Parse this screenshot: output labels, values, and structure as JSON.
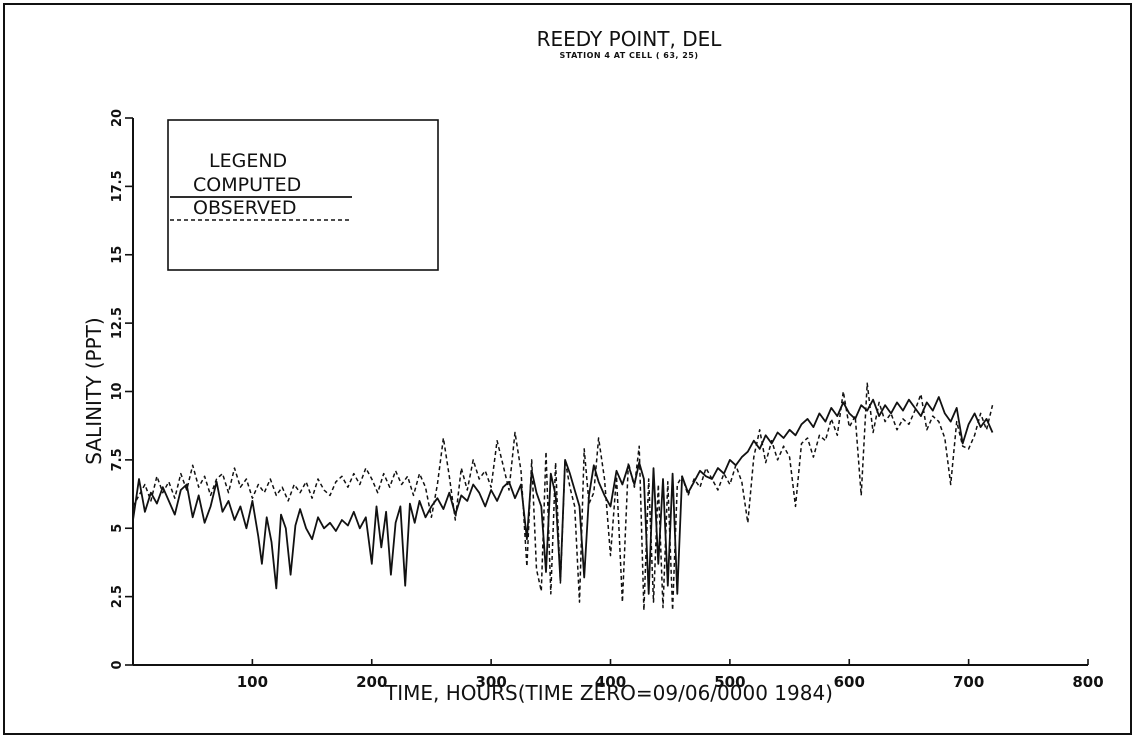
{
  "chart_data": {
    "type": "line",
    "title": "REEDY POINT, DEL",
    "subtitle": "STATION 4 AT CELL ( 63, 25)",
    "xlabel": "TIME, HOURS(TIME ZERO=09/06/0000 1984)",
    "ylabel": "SALINITY (PPT)",
    "xlim": [
      0,
      800
    ],
    "ylim": [
      0,
      20
    ],
    "x_ticks": [
      100,
      200,
      300,
      400,
      500,
      600,
      700,
      800
    ],
    "y_ticks": [
      0,
      2.5,
      5,
      7.5,
      10,
      12.5,
      15,
      17.5,
      20
    ],
    "x_tick_labels": [
      "100",
      "200",
      "300",
      "400",
      "500",
      "600",
      "700",
      "800"
    ],
    "y_tick_labels": [
      "0",
      "2.5",
      "5",
      "7.5",
      "10",
      "12.5",
      "15",
      "17.5",
      "20"
    ],
    "legend": {
      "title": "LEGEND",
      "placement": "top-left",
      "entries": [
        {
          "name": "COMPUTED",
          "style": "solid"
        },
        {
          "name": "OBSERVED",
          "style": "dashed"
        }
      ]
    },
    "grid": false,
    "series": [
      {
        "name": "COMPUTED",
        "style": "solid",
        "x": [
          0,
          5,
          10,
          15,
          20,
          25,
          30,
          35,
          40,
          45,
          50,
          55,
          60,
          65,
          70,
          75,
          80,
          85,
          90,
          95,
          100,
          105,
          108,
          112,
          116,
          120,
          124,
          128,
          132,
          136,
          140,
          145,
          150,
          155,
          160,
          165,
          170,
          175,
          180,
          185,
          190,
          195,
          200,
          204,
          208,
          212,
          216,
          220,
          224,
          228,
          232,
          236,
          240,
          245,
          250,
          255,
          260,
          265,
          270,
          275,
          280,
          285,
          290,
          295,
          300,
          305,
          310,
          315,
          320,
          325,
          330,
          334,
          338,
          342,
          346,
          350,
          354,
          358,
          362,
          366,
          370,
          374,
          378,
          382,
          386,
          390,
          395,
          400,
          405,
          410,
          415,
          420,
          424,
          428,
          432,
          436,
          440,
          444,
          448,
          452,
          456,
          460,
          465,
          470,
          475,
          480,
          485,
          490,
          495,
          500,
          505,
          510,
          515,
          520,
          525,
          530,
          535,
          540,
          545,
          550,
          555,
          560,
          565,
          570,
          575,
          580,
          585,
          590,
          595,
          600,
          605,
          610,
          615,
          620,
          625,
          630,
          635,
          640,
          645,
          650,
          655,
          660,
          665,
          670,
          675,
          680,
          685,
          690,
          695,
          700,
          705,
          710,
          715,
          720
        ],
        "values": [
          5.3,
          6.8,
          5.6,
          6.3,
          5.9,
          6.5,
          6.0,
          5.5,
          6.4,
          6.6,
          5.4,
          6.2,
          5.2,
          5.8,
          6.7,
          5.6,
          6.0,
          5.3,
          5.8,
          5.0,
          6.0,
          4.7,
          3.7,
          5.4,
          4.5,
          2.8,
          5.5,
          5.0,
          3.3,
          5.1,
          5.7,
          5.0,
          4.6,
          5.4,
          5.0,
          5.2,
          4.9,
          5.3,
          5.1,
          5.6,
          5.0,
          5.4,
          3.7,
          5.8,
          4.3,
          5.6,
          3.3,
          5.2,
          5.8,
          2.9,
          5.9,
          5.2,
          6.0,
          5.4,
          5.8,
          6.1,
          5.7,
          6.3,
          5.5,
          6.2,
          6.0,
          6.6,
          6.3,
          5.8,
          6.4,
          6.0,
          6.5,
          6.7,
          6.1,
          6.6,
          4.6,
          7.1,
          6.3,
          5.8,
          3.4,
          7.0,
          6.2,
          3.1,
          7.5,
          7.0,
          6.4,
          5.8,
          3.2,
          6.2,
          7.3,
          6.7,
          6.2,
          5.8,
          7.1,
          6.6,
          7.3,
          6.6,
          7.4,
          6.8,
          2.6,
          7.2,
          3.7,
          6.8,
          2.9,
          7.0,
          2.6,
          6.9,
          6.3,
          6.7,
          7.1,
          6.9,
          6.8,
          7.2,
          7.0,
          7.5,
          7.3,
          7.6,
          7.8,
          8.2,
          7.9,
          8.4,
          8.1,
          8.5,
          8.3,
          8.6,
          8.4,
          8.8,
          9.0,
          8.7,
          9.2,
          8.9,
          9.4,
          9.1,
          9.6,
          9.2,
          9.0,
          9.5,
          9.3,
          9.7,
          9.1,
          9.5,
          9.2,
          9.6,
          9.3,
          9.7,
          9.4,
          9.1,
          9.6,
          9.3,
          9.8,
          9.2,
          8.9,
          9.4,
          8.1,
          8.8,
          9.2,
          8.7,
          9.0,
          8.5
        ]
      },
      {
        "name": "OBSERVED",
        "style": "dashed",
        "x": [
          0,
          5,
          10,
          15,
          20,
          25,
          30,
          35,
          40,
          45,
          50,
          55,
          60,
          65,
          70,
          75,
          80,
          85,
          90,
          95,
          100,
          105,
          110,
          115,
          120,
          125,
          130,
          135,
          140,
          145,
          150,
          155,
          160,
          165,
          170,
          175,
          180,
          185,
          190,
          195,
          200,
          205,
          210,
          215,
          220,
          225,
          230,
          235,
          240,
          245,
          250,
          255,
          260,
          265,
          270,
          275,
          280,
          285,
          290,
          295,
          300,
          305,
          310,
          315,
          320,
          325,
          330,
          334,
          338,
          342,
          346,
          350,
          354,
          358,
          362,
          366,
          370,
          374,
          378,
          382,
          386,
          390,
          395,
          400,
          405,
          410,
          415,
          420,
          424,
          428,
          432,
          436,
          440,
          444,
          448,
          452,
          456,
          460,
          465,
          470,
          475,
          480,
          485,
          490,
          495,
          500,
          505,
          510,
          515,
          520,
          525,
          530,
          535,
          540,
          545,
          550,
          555,
          560,
          565,
          570,
          575,
          580,
          585,
          590,
          595,
          600,
          605,
          610,
          615,
          620,
          625,
          630,
          635,
          640,
          645,
          650,
          655,
          660,
          665,
          670,
          675,
          680,
          685,
          690,
          695,
          700,
          705,
          710,
          715,
          720
        ],
        "values": [
          5.8,
          6.2,
          6.6,
          6.0,
          6.9,
          6.3,
          6.7,
          6.1,
          7.0,
          6.4,
          7.3,
          6.5,
          6.9,
          6.2,
          6.8,
          7.0,
          6.3,
          7.2,
          6.5,
          6.8,
          6.1,
          6.6,
          6.3,
          6.8,
          6.2,
          6.5,
          6.0,
          6.6,
          6.3,
          6.7,
          6.1,
          6.8,
          6.4,
          6.2,
          6.7,
          6.9,
          6.5,
          7.0,
          6.6,
          7.2,
          6.8,
          6.3,
          7.0,
          6.5,
          7.1,
          6.6,
          6.9,
          6.2,
          7.0,
          6.5,
          5.4,
          6.6,
          8.3,
          6.9,
          5.3,
          7.2,
          6.4,
          7.5,
          6.8,
          7.1,
          6.5,
          8.2,
          7.3,
          6.4,
          8.5,
          7.1,
          3.6,
          7.5,
          3.5,
          2.7,
          7.8,
          2.6,
          7.4,
          3.0,
          7.5,
          6.5,
          5.8,
          2.3,
          7.9,
          5.9,
          6.3,
          8.3,
          6.8,
          4.0,
          6.9,
          2.3,
          7.4,
          6.5,
          8.0,
          2.0,
          6.8,
          2.3,
          6.6,
          2.1,
          6.7,
          2.0,
          6.6,
          6.9,
          6.2,
          6.8,
          6.5,
          7.2,
          6.8,
          6.4,
          7.0,
          6.6,
          7.3,
          6.7,
          5.2,
          7.6,
          8.6,
          7.4,
          8.2,
          7.5,
          8.0,
          7.6,
          5.8,
          8.1,
          8.3,
          7.6,
          8.4,
          8.2,
          9.0,
          8.4,
          10.0,
          8.7,
          9.1,
          6.2,
          10.3,
          8.5,
          9.6,
          8.9,
          9.2,
          8.6,
          9.0,
          8.8,
          9.3,
          9.9,
          8.6,
          9.1,
          8.9,
          8.3,
          6.6,
          8.9,
          8.0,
          7.9,
          8.4,
          9.2,
          8.6,
          9.5
        ]
      }
    ]
  }
}
